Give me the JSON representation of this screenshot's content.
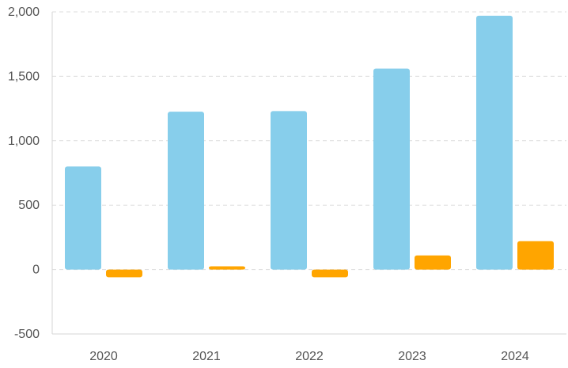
{
  "chart_data": {
    "type": "bar",
    "categories": [
      "2020",
      "2021",
      "2022",
      "2023",
      "2024"
    ],
    "series": [
      {
        "color": "#87CEEB",
        "values": [
          800,
          1225,
          1230,
          1560,
          1970
        ]
      },
      {
        "color": "#FFA500",
        "values": [
          -60,
          25,
          -60,
          110,
          220
        ]
      }
    ],
    "ylim": [
      -500,
      2000
    ],
    "yticks": [
      -500,
      0,
      500,
      1000,
      1500,
      2000
    ],
    "ytick_labels": [
      "-500",
      "0",
      "500",
      "1,000",
      "1,500",
      "2,000"
    ],
    "grid": true,
    "legend": "none"
  }
}
